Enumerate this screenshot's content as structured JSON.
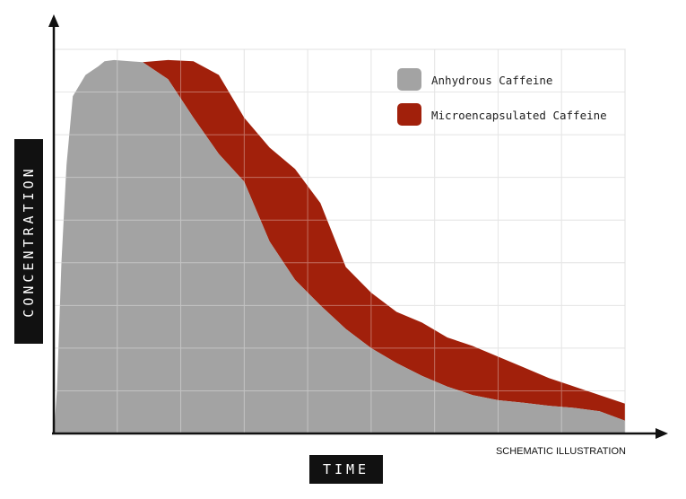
{
  "chart_data": {
    "type": "area",
    "xlabel": "TIME",
    "ylabel": "CONCENTRATION",
    "note": "SCHEMATIC ILLUSTRATION",
    "x_range": [
      0,
      9
    ],
    "y_range": [
      0,
      9
    ],
    "grid": true,
    "legend_position": "top-right",
    "series": [
      {
        "name": "Anhydrous Caffeine",
        "color": "#a3a3a3",
        "x": [
          0,
          0.05,
          0.12,
          0.2,
          0.3,
          0.5,
          0.7,
          0.8,
          0.95,
          1.2,
          1.4,
          1.8,
          2.2,
          2.6,
          3.0,
          3.4,
          3.8,
          4.2,
          4.6,
          5.0,
          5.4,
          5.8,
          6.2,
          6.6,
          7.0,
          7.4,
          7.8,
          8.2,
          8.6,
          9.0
        ],
        "y": [
          0,
          1.0,
          4.0,
          6.3,
          7.9,
          8.4,
          8.6,
          8.72,
          8.75,
          8.72,
          8.7,
          8.3,
          7.4,
          6.55,
          5.9,
          4.5,
          3.6,
          3.0,
          2.45,
          2.0,
          1.65,
          1.35,
          1.1,
          0.9,
          0.78,
          0.72,
          0.65,
          0.6,
          0.52,
          0.3
        ]
      },
      {
        "name": "Microencapsulated Caffeine",
        "color": "#a1200b",
        "x": [
          1.4,
          1.8,
          2.2,
          2.6,
          3.0,
          3.4,
          3.8,
          4.2,
          4.6,
          5.0,
          5.4,
          5.8,
          6.2,
          6.6,
          7.0,
          7.4,
          7.8,
          8.2,
          8.6,
          9.0
        ],
        "y": [
          8.7,
          8.75,
          8.72,
          8.4,
          7.4,
          6.7,
          6.2,
          5.4,
          3.9,
          3.3,
          2.85,
          2.6,
          2.25,
          2.05,
          1.8,
          1.55,
          1.3,
          1.1,
          0.9,
          0.7
        ]
      }
    ]
  }
}
